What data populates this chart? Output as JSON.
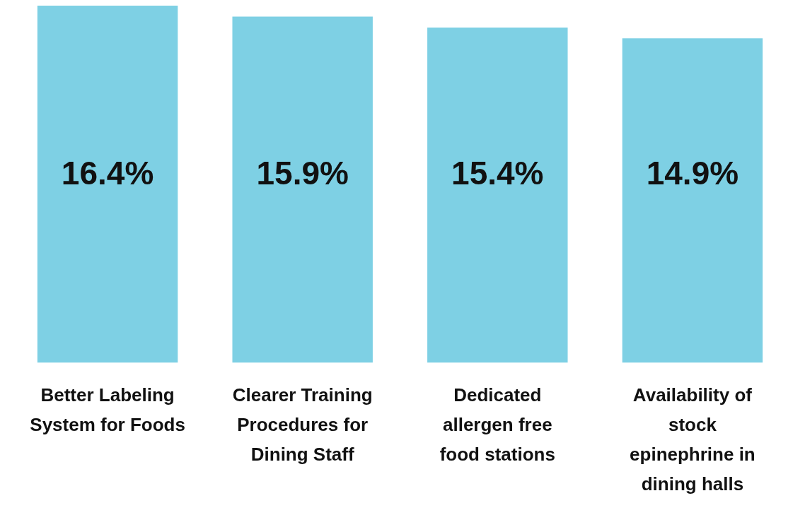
{
  "chart_data": {
    "type": "bar",
    "categories": [
      "Better Labeling System for Foods",
      "Clearer Training Procedures for Dining Staff",
      "Dedicated allergen free food stations",
      "Availability of stock epinephrine in dining halls"
    ],
    "values": [
      16.4,
      15.9,
      15.4,
      14.9
    ],
    "value_labels": [
      "16.4%",
      "15.9%",
      "15.4%",
      "14.9%"
    ],
    "color": "#7ed0e4"
  }
}
